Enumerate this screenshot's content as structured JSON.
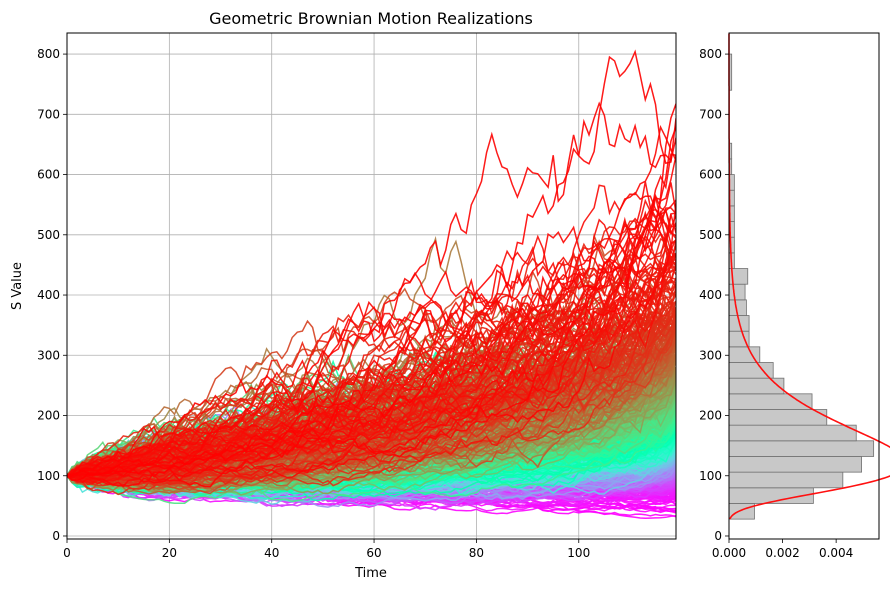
{
  "chart_data": [
    {
      "type": "line",
      "title": "Geometric Brownian Motion Realizations",
      "xlabel": "Time",
      "ylabel": "S Value",
      "xlim": [
        0,
        119
      ],
      "ylim": [
        -5,
        835
      ],
      "x_ticks": [
        0,
        20,
        40,
        60,
        80,
        100
      ],
      "y_ticks": [
        0,
        100,
        200,
        300,
        400,
        500,
        600,
        700,
        800
      ],
      "grid": true,
      "colormap": "rainbow",
      "num_paths": 1000,
      "start_value": 100,
      "x_range": [
        0,
        119
      ],
      "representative_endpoints": [
        {
          "color": "#ff2010",
          "peak": 795
        },
        {
          "color": "#f8a058",
          "peak": 725
        },
        {
          "color": "#a0f898",
          "peak": 690
        }
      ]
    },
    {
      "type": "bar",
      "orientation": "horizontal",
      "xlim": [
        0,
        0.0056
      ],
      "ylim": [
        -5,
        835
      ],
      "x_ticks": [
        0,
        0.002,
        0.004
      ],
      "x_tick_labels": [
        "0.000",
        "0.002",
        "0.004"
      ],
      "y_ticks": [
        0,
        100,
        200,
        300,
        400,
        500,
        600,
        700,
        800
      ],
      "bar_color": "#c8c8c8",
      "edge_color": "#707070",
      "bins": [
        {
          "low": 28,
          "high": 54,
          "density": 0.00095
        },
        {
          "low": 54,
          "high": 80,
          "density": 0.00315
        },
        {
          "low": 80,
          "high": 106,
          "density": 0.00425
        },
        {
          "low": 106,
          "high": 132,
          "density": 0.00495
        },
        {
          "low": 132,
          "high": 158,
          "density": 0.0054
        },
        {
          "low": 158,
          "high": 184,
          "density": 0.00475
        },
        {
          "low": 184,
          "high": 210,
          "density": 0.00365
        },
        {
          "low": 210,
          "high": 236,
          "density": 0.0031
        },
        {
          "low": 236,
          "high": 262,
          "density": 0.00205
        },
        {
          "low": 262,
          "high": 288,
          "density": 0.00165
        },
        {
          "low": 288,
          "high": 314,
          "density": 0.00115
        },
        {
          "low": 314,
          "high": 340,
          "density": 0.00075
        },
        {
          "low": 340,
          "high": 366,
          "density": 0.00075
        },
        {
          "low": 366,
          "high": 392,
          "density": 0.00065
        },
        {
          "low": 392,
          "high": 418,
          "density": 0.0006
        },
        {
          "low": 418,
          "high": 444,
          "density": 0.0007
        },
        {
          "low": 444,
          "high": 470,
          "density": 0.0002
        },
        {
          "low": 470,
          "high": 496,
          "density": 0.0002
        },
        {
          "low": 496,
          "high": 522,
          "density": 0.0002
        },
        {
          "low": 522,
          "high": 548,
          "density": 0.0002
        },
        {
          "low": 548,
          "high": 574,
          "density": 0.0002
        },
        {
          "low": 574,
          "high": 600,
          "density": 0.0002
        },
        {
          "low": 600,
          "high": 626,
          "density": 0.0001
        },
        {
          "low": 626,
          "high": 652,
          "density": 0.0001
        },
        {
          "low": 652,
          "high": 740,
          "density": 0.0
        },
        {
          "low": 740,
          "high": 800,
          "density": 0.0001
        }
      ],
      "pdf_curve": {
        "color": "#ff1010",
        "type": "lognormal",
        "mu": 5.0,
        "sigma": 0.45
      }
    }
  ]
}
